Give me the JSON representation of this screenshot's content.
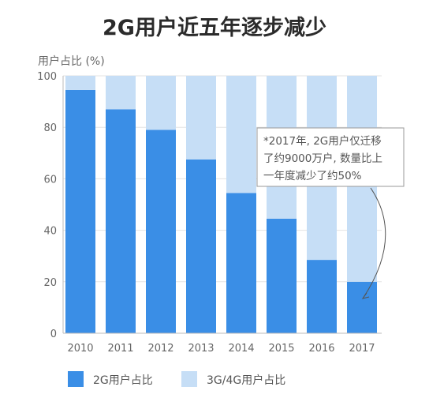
{
  "chart_data": {
    "type": "bar",
    "stacked": true,
    "title": "2G用户近五年逐步减少",
    "ylabel": "用户占比 (%)",
    "xlabel": "",
    "categories": [
      "2010",
      "2011",
      "2012",
      "2013",
      "2014",
      "2015",
      "2016",
      "2017"
    ],
    "series": [
      {
        "name": "2G用户占比",
        "values": [
          94.5,
          87,
          79,
          67.5,
          54.5,
          44.5,
          28.5,
          20
        ],
        "color": "#3a8ee6"
      },
      {
        "name": "3G/4G用户占比",
        "values": [
          5.5,
          13,
          21,
          32.5,
          45.5,
          55.5,
          71.5,
          80
        ],
        "color": "#c6def6"
      }
    ],
    "ylim": [
      0,
      100
    ],
    "yticks": [
      0,
      20,
      40,
      60,
      80,
      100
    ],
    "grid": true,
    "legend_position": "bottom-left",
    "annotation": {
      "lines": [
        "*2017年, 2G用户仅迁移",
        "了约9000万户, 数量比上",
        "一年度减少了约50%"
      ],
      "target_category": "2017"
    }
  }
}
